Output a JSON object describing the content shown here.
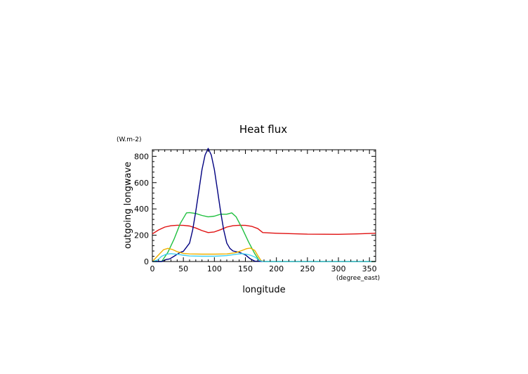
{
  "chart_data": {
    "type": "line",
    "title": "Heat flux",
    "xlabel": "longitude",
    "ylabel": "outgoing longwave",
    "x_unit": "(degree_east)",
    "y_unit": "(W.m-2)",
    "xlim": [
      0,
      360
    ],
    "ylim": [
      0,
      850
    ],
    "x_ticks": [
      0,
      50,
      100,
      150,
      200,
      250,
      300,
      350
    ],
    "y_ticks": [
      0,
      200,
      400,
      600,
      800
    ],
    "grid": false,
    "series": [
      {
        "color": "#e01010",
        "points": [
          [
            0,
            210
          ],
          [
            10,
            240
          ],
          [
            20,
            262
          ],
          [
            30,
            272
          ],
          [
            40,
            276
          ],
          [
            50,
            275
          ],
          [
            60,
            270
          ],
          [
            70,
            255
          ],
          [
            80,
            235
          ],
          [
            90,
            220
          ],
          [
            100,
            225
          ],
          [
            110,
            242
          ],
          [
            120,
            262
          ],
          [
            130,
            272
          ],
          [
            140,
            276
          ],
          [
            150,
            275
          ],
          [
            160,
            268
          ],
          [
            170,
            250
          ],
          [
            178,
            220
          ],
          [
            200,
            215
          ],
          [
            250,
            208
          ],
          [
            300,
            207
          ],
          [
            330,
            210
          ],
          [
            360,
            215
          ]
        ]
      },
      {
        "color": "#20c040",
        "points": [
          [
            0,
            0
          ],
          [
            15,
            0
          ],
          [
            25,
            70
          ],
          [
            35,
            170
          ],
          [
            45,
            290
          ],
          [
            55,
            370
          ],
          [
            60,
            372
          ],
          [
            70,
            365
          ],
          [
            80,
            350
          ],
          [
            90,
            340
          ],
          [
            100,
            345
          ],
          [
            110,
            360
          ],
          [
            120,
            360
          ],
          [
            128,
            370
          ],
          [
            135,
            340
          ],
          [
            145,
            250
          ],
          [
            155,
            150
          ],
          [
            165,
            60
          ],
          [
            172,
            10
          ],
          [
            180,
            0
          ],
          [
            360,
            0
          ]
        ]
      },
      {
        "color": "#000080",
        "points": [
          [
            0,
            0
          ],
          [
            15,
            0
          ],
          [
            22,
            15
          ],
          [
            28,
            20
          ],
          [
            35,
            40
          ],
          [
            45,
            70
          ],
          [
            50,
            78
          ],
          [
            60,
            140
          ],
          [
            65,
            240
          ],
          [
            70,
            380
          ],
          [
            75,
            540
          ],
          [
            80,
            700
          ],
          [
            85,
            810
          ],
          [
            90,
            860
          ],
          [
            95,
            810
          ],
          [
            100,
            700
          ],
          [
            105,
            540
          ],
          [
            110,
            380
          ],
          [
            115,
            240
          ],
          [
            120,
            140
          ],
          [
            125,
            100
          ],
          [
            130,
            80
          ],
          [
            140,
            70
          ],
          [
            150,
            50
          ],
          [
            158,
            20
          ],
          [
            165,
            3
          ],
          [
            180,
            0
          ],
          [
            360,
            0
          ]
        ]
      },
      {
        "color": "#f0b000",
        "points": [
          [
            0,
            0
          ],
          [
            10,
            50
          ],
          [
            18,
            90
          ],
          [
            25,
            100
          ],
          [
            32,
            92
          ],
          [
            40,
            75
          ],
          [
            50,
            62
          ],
          [
            60,
            58
          ],
          [
            80,
            56
          ],
          [
            100,
            56
          ],
          [
            120,
            58
          ],
          [
            135,
            68
          ],
          [
            145,
            85
          ],
          [
            152,
            98
          ],
          [
            158,
            102
          ],
          [
            165,
            85
          ],
          [
            170,
            45
          ],
          [
            175,
            8
          ],
          [
            180,
            0
          ],
          [
            360,
            0
          ]
        ]
      },
      {
        "color": "#40d0f0",
        "points": [
          [
            0,
            0
          ],
          [
            8,
            10
          ],
          [
            15,
            40
          ],
          [
            22,
            55
          ],
          [
            30,
            60
          ],
          [
            40,
            55
          ],
          [
            50,
            48
          ],
          [
            60,
            42
          ],
          [
            80,
            40
          ],
          [
            100,
            40
          ],
          [
            120,
            45
          ],
          [
            135,
            55
          ],
          [
            145,
            60
          ],
          [
            152,
            55
          ],
          [
            158,
            48
          ],
          [
            165,
            35
          ],
          [
            172,
            10
          ],
          [
            178,
            0
          ],
          [
            360,
            0
          ]
        ]
      }
    ]
  }
}
